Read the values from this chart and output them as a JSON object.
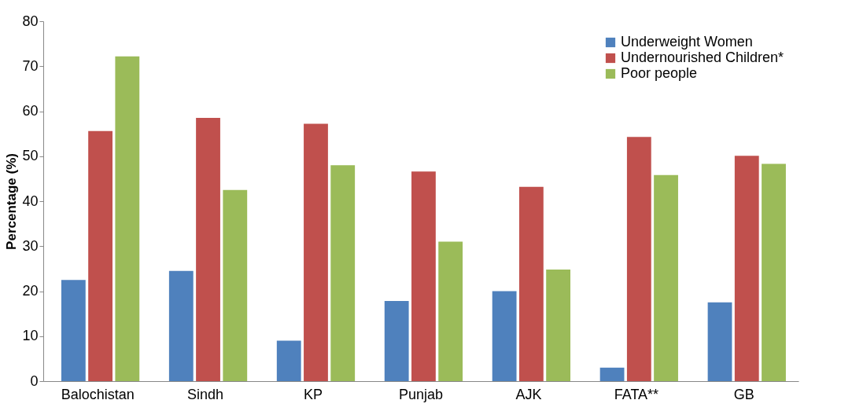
{
  "chart_data": {
    "type": "bar",
    "ylabel": "Percentage (%)",
    "categories": [
      "Balochistan",
      "Sindh",
      "KP",
      "Punjab",
      "AJK",
      "FATA**",
      "GB"
    ],
    "series": [
      {
        "name": "Underweight Women",
        "color": "#4f81bd",
        "values": [
          22.5,
          24.5,
          9,
          17.8,
          20,
          3,
          17.5
        ]
      },
      {
        "name": "Undernourished Children*",
        "color": "#c0504d",
        "values": [
          55.6,
          58.5,
          57.2,
          46.6,
          43.2,
          54.3,
          50.1
        ]
      },
      {
        "name": "Poor people",
        "color": "#9bbb59",
        "values": [
          72.2,
          42.5,
          48,
          31,
          24.8,
          45.8,
          48.3
        ]
      }
    ],
    "ylim": [
      0,
      80
    ],
    "yticks": [
      0,
      10,
      20,
      30,
      40,
      50,
      60,
      70,
      80
    ],
    "grid": false,
    "legend": "top right"
  }
}
